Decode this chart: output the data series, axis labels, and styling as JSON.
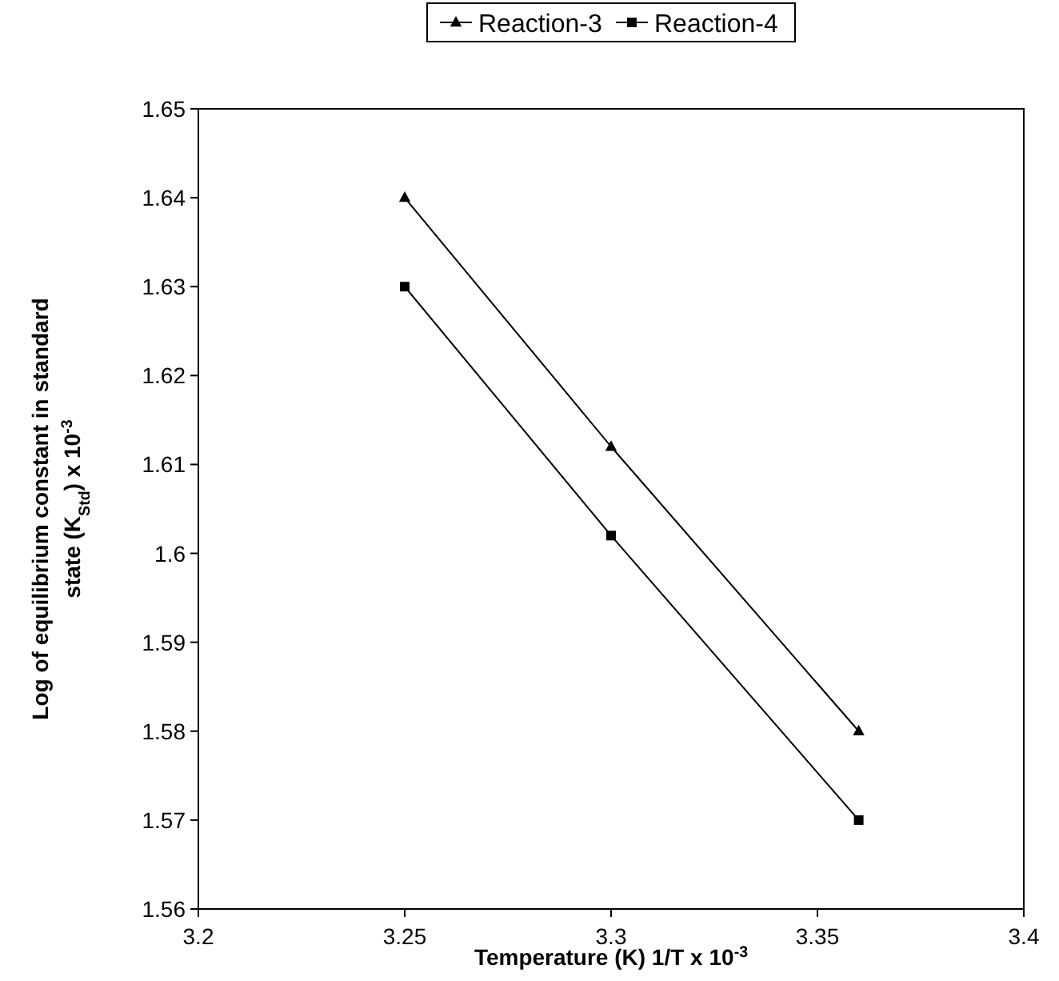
{
  "chart_data": {
    "type": "line",
    "xlabel": "Temperature (K) 1/T x 10$^{-3}$",
    "ylabel": "Log of equilibrium constant in standard state (K$_{Std}$) x 10$^{-3}$",
    "xlim": [
      3.2,
      3.4
    ],
    "xticks": [
      3.2,
      3.25,
      3.3,
      3.35,
      3.4
    ],
    "ylim": [
      1.56,
      1.65
    ],
    "yticks": [
      {
        "value": 1.56,
        "label": "1.56"
      },
      {
        "value": 1.57,
        "label": "1.57"
      },
      {
        "value": 1.58,
        "label": "1.58"
      },
      {
        "value": 1.59,
        "label": "1.59"
      },
      {
        "value": 1.6,
        "label": "1.6"
      },
      {
        "value": 1.61,
        "label": "1.61"
      },
      {
        "value": 1.62,
        "label": "1.62"
      },
      {
        "value": 1.63,
        "label": "1.63"
      },
      {
        "value": 1.64,
        "label": "1.64"
      },
      {
        "value": 1.65,
        "label": "1.65"
      }
    ],
    "legend": "top",
    "grid": false,
    "line_style": "solid",
    "series": [
      {
        "name": "Reaction-3",
        "color": "#000000",
        "marker": "triangle",
        "x": [
          3.25,
          3.3,
          3.36
        ],
        "values": [
          1.64,
          1.612,
          1.58
        ]
      },
      {
        "name": "Reaction-4",
        "color": "#000000",
        "marker": "square",
        "x": [
          3.25,
          3.3,
          3.36
        ],
        "values": [
          1.63,
          1.602,
          1.57
        ]
      }
    ]
  }
}
